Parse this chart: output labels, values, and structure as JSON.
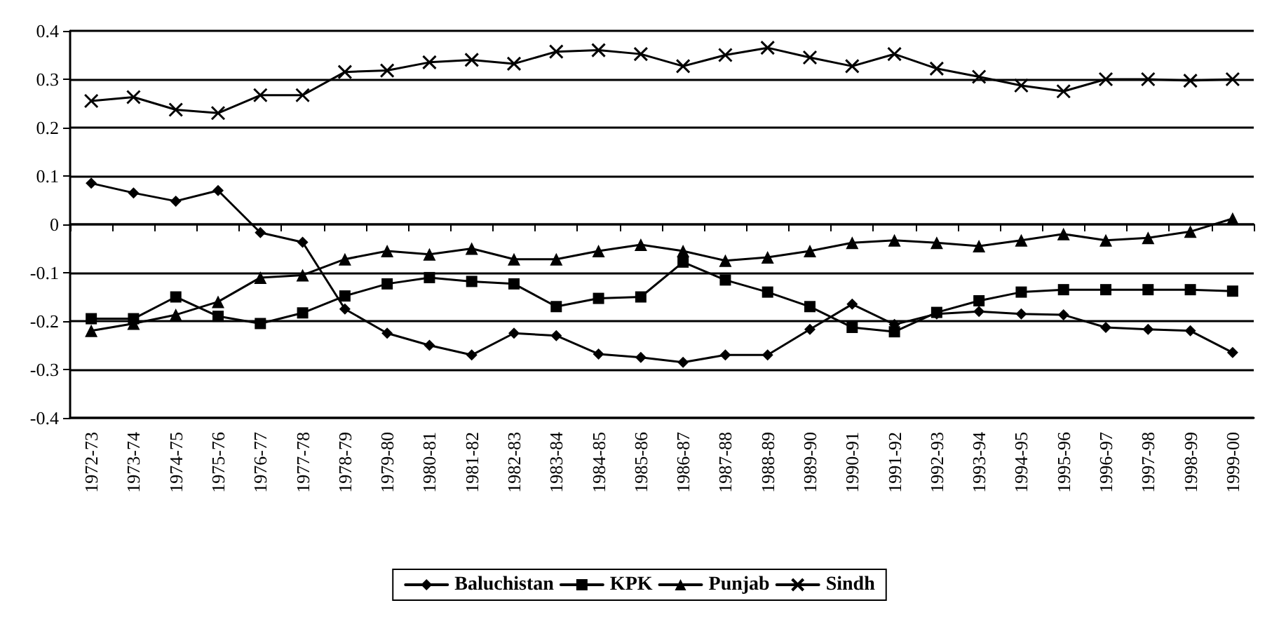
{
  "chart_data": {
    "type": "line",
    "categories": [
      "1972-73",
      "1973-74",
      "1974-75",
      "1975-76",
      "1976-77",
      "1977-78",
      "1978-79",
      "1979-80",
      "1980-81",
      "1981-82",
      "1982-83",
      "1983-84",
      "1984-85",
      "1985-86",
      "1986-87",
      "1987-88",
      "1988-89",
      "1989-90",
      "1990-91",
      "1991-92",
      "1992-93",
      "1993-94",
      "1994-95",
      "1995-96",
      "1996-97",
      "1997-98",
      "1998-99",
      "1999-00"
    ],
    "series": [
      {
        "name": "Baluchistan",
        "color": "#000000",
        "marker": "diamond",
        "values": [
          0.085,
          0.065,
          0.048,
          0.07,
          -0.017,
          -0.037,
          -0.175,
          -0.225,
          -0.25,
          -0.27,
          -0.225,
          -0.23,
          -0.268,
          -0.275,
          -0.285,
          -0.27,
          -0.27,
          -0.217,
          -0.165,
          -0.207,
          -0.185,
          -0.18,
          -0.185,
          -0.187,
          -0.213,
          -0.217,
          -0.22,
          -0.265
        ]
      },
      {
        "name": "KPK",
        "color": "#000000",
        "marker": "square",
        "values": [
          -0.195,
          -0.195,
          -0.15,
          -0.19,
          -0.205,
          -0.183,
          -0.148,
          -0.123,
          -0.11,
          -0.118,
          -0.123,
          -0.17,
          -0.153,
          -0.15,
          -0.078,
          -0.115,
          -0.14,
          -0.17,
          -0.213,
          -0.222,
          -0.182,
          -0.158,
          -0.14,
          -0.135,
          -0.135,
          -0.135,
          -0.135,
          -0.138
        ]
      },
      {
        "name": "Punjab",
        "color": "#000000",
        "marker": "triangle",
        "values": [
          -0.22,
          -0.205,
          -0.187,
          -0.16,
          -0.11,
          -0.105,
          -0.072,
          -0.055,
          -0.062,
          -0.05,
          -0.072,
          -0.072,
          -0.055,
          -0.042,
          -0.055,
          -0.075,
          -0.068,
          -0.055,
          -0.038,
          -0.033,
          -0.038,
          -0.045,
          -0.033,
          -0.02,
          -0.033,
          -0.028,
          -0.015,
          0.012
        ]
      },
      {
        "name": "Sindh",
        "color": "#000000",
        "marker": "cross",
        "values": [
          0.255,
          0.263,
          0.237,
          0.23,
          0.267,
          0.267,
          0.315,
          0.318,
          0.335,
          0.34,
          0.332,
          0.357,
          0.36,
          0.352,
          0.327,
          0.35,
          0.365,
          0.345,
          0.327,
          0.352,
          0.322,
          0.305,
          0.287,
          0.275,
          0.3,
          0.3,
          0.297,
          0.3
        ]
      }
    ],
    "ylim": [
      -0.4,
      0.4
    ],
    "yticks": [
      -0.4,
      -0.3,
      -0.2,
      -0.1,
      0,
      0.1,
      0.2,
      0.3,
      0.4
    ],
    "grid": "y",
    "legend": "bottom",
    "line_style": "solid"
  }
}
